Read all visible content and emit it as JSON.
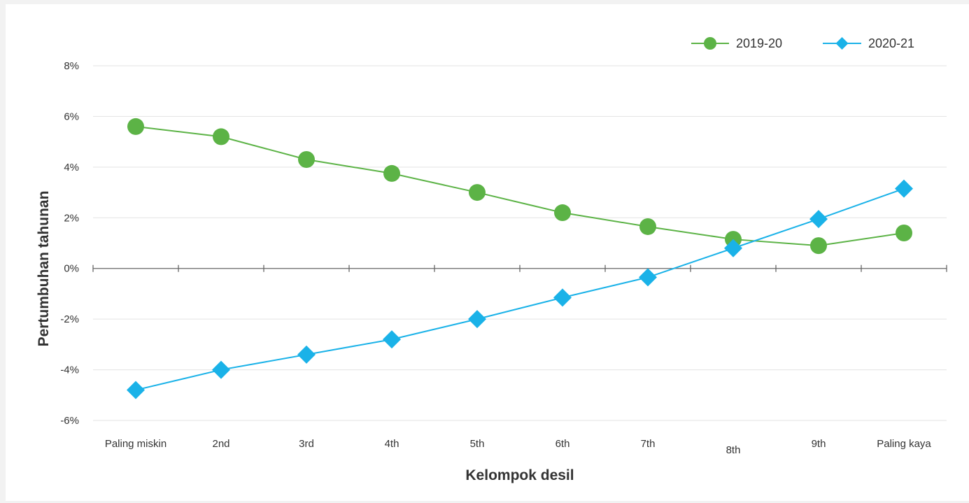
{
  "chart_data": {
    "type": "line",
    "title": "",
    "xlabel": "Kelompok desil",
    "ylabel": "Pertumbuhan tahunan",
    "categories": [
      "Paling miskin",
      "2nd",
      "3rd",
      "4th",
      "5th",
      "6th",
      "7th",
      "8th",
      "9th",
      "Paling kaya"
    ],
    "yticks": [
      "8%",
      "6%",
      "4%",
      "2%",
      "0%",
      "-2%",
      "-4%",
      "-6%"
    ],
    "ylim": [
      -6,
      8
    ],
    "grid": true,
    "legend_position": "top-right",
    "series": [
      {
        "name": "2019-20",
        "color": "#5cb346",
        "marker": "circle",
        "values": [
          5.6,
          5.2,
          4.3,
          3.75,
          3.0,
          2.2,
          1.65,
          1.15,
          0.9,
          1.4
        ]
      },
      {
        "name": "2020-21",
        "color": "#1ab2e8",
        "marker": "diamond",
        "values": [
          -4.8,
          -4.0,
          -3.4,
          -2.8,
          -2.0,
          -1.15,
          -0.35,
          0.8,
          1.95,
          3.15
        ]
      }
    ]
  }
}
